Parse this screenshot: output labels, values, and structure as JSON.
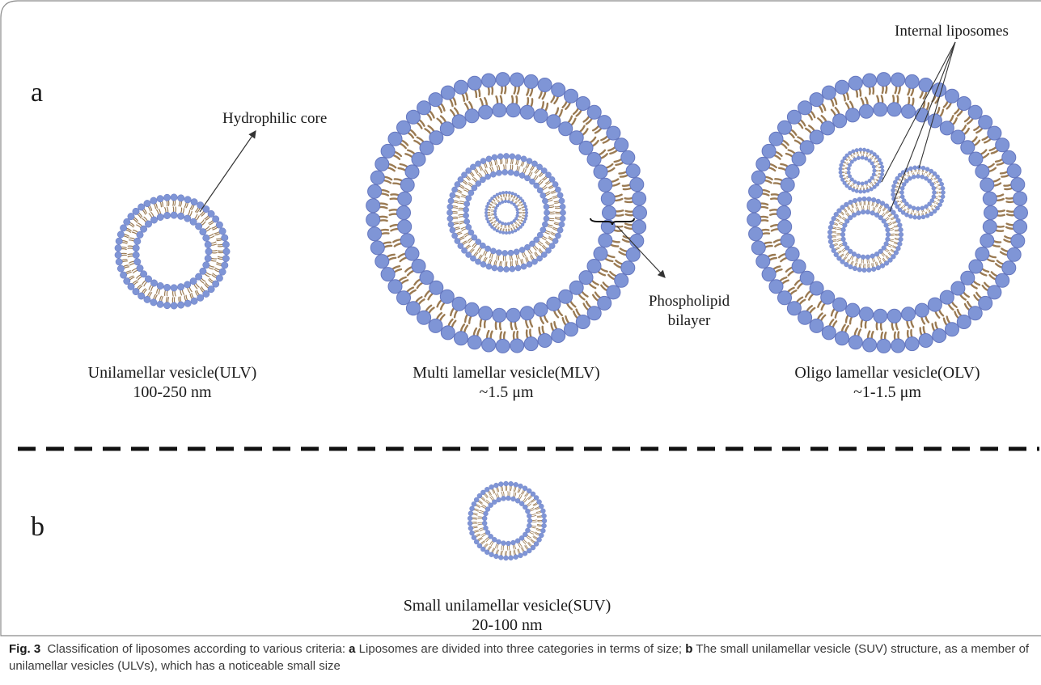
{
  "panels": {
    "a": {
      "label": "a",
      "vesicles": [
        {
          "name": "Unilamellar vesicle(ULV)",
          "size": "100-250 nm"
        },
        {
          "name": "Multi lamellar vesicle(MLV)",
          "size": "~1.5 μm"
        },
        {
          "name": "Oligo lamellar vesicle(OLV)",
          "size": "~1-1.5 μm"
        }
      ],
      "annotations": {
        "core": "Hydrophilic core",
        "bilayer_line1": "Phospholipid",
        "bilayer_line2": "bilayer",
        "internal": "Internal liposomes"
      }
    },
    "b": {
      "label": "b",
      "vesicle": {
        "name": "Small unilamellar vesicle(SUV)",
        "size": "20-100 nm"
      }
    }
  },
  "caption": {
    "fig_label": "Fig. 3",
    "intro": "Classification of liposomes according to various criteria: ",
    "a_key": "a",
    "a_text": " Liposomes are divided into three categories in terms of size; ",
    "b_key": "b",
    "b_text": " The small unilamellar vesicle (SUV) structure, as a member of unilamellar vesicles (ULVs), which has a noticeable small size"
  },
  "colors": {
    "head": "#7f95d6",
    "head_edge": "#6577bf",
    "tail": "#9a7a52",
    "frame": "#8a8a8a",
    "dash": "#111111"
  }
}
